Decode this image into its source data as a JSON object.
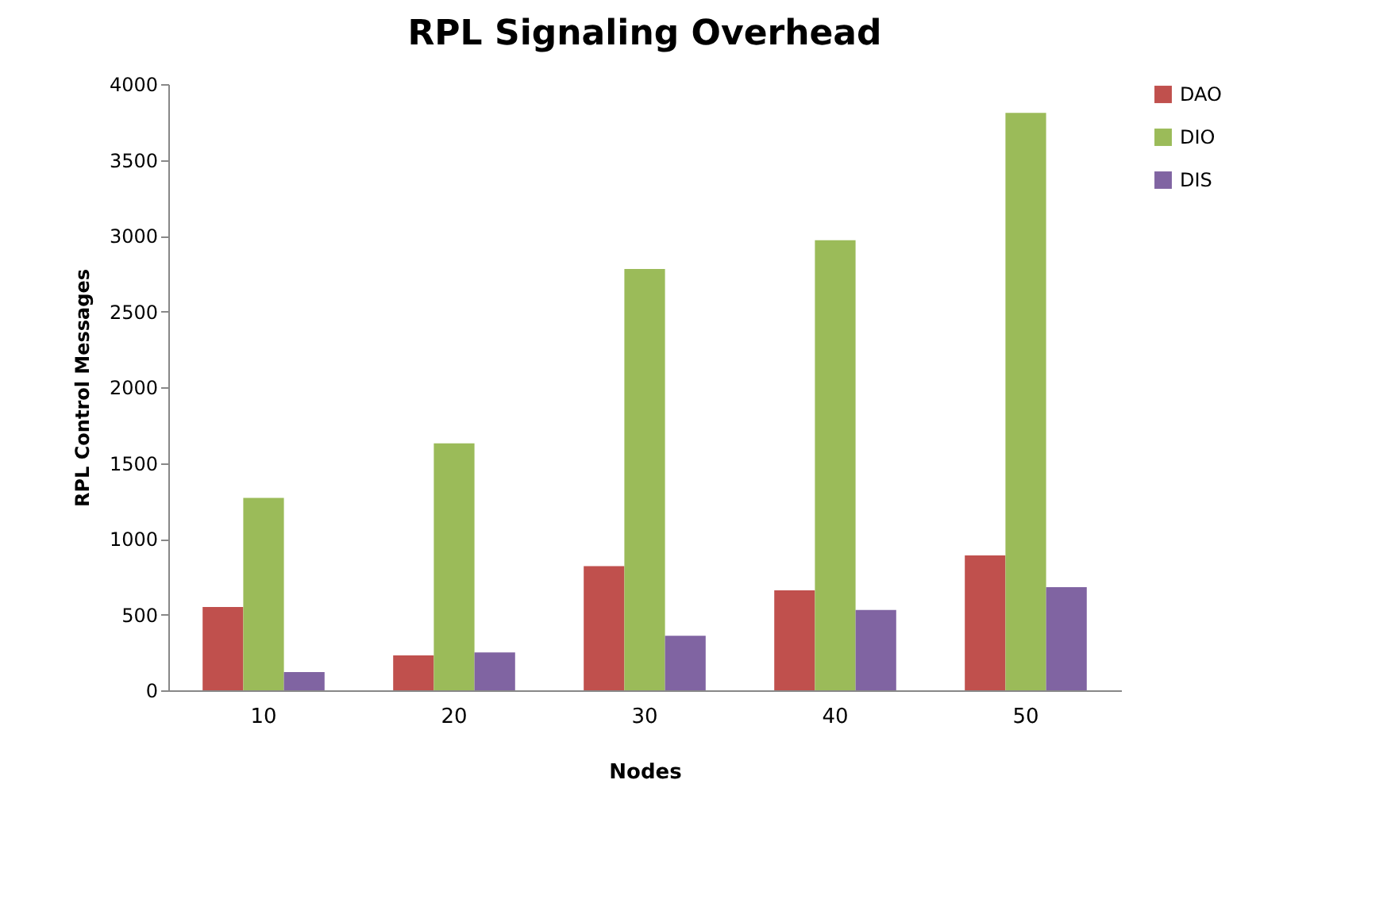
{
  "chart_data": {
    "type": "bar",
    "title": "RPL Signaling Overhead",
    "xlabel": "Nodes",
    "ylabel": "RPL Control Messages",
    "categories": [
      "10",
      "20",
      "30",
      "40",
      "50"
    ],
    "series": [
      {
        "name": "DAO",
        "color": "#c0504d",
        "values": [
          550,
          230,
          820,
          660,
          890
        ]
      },
      {
        "name": "DIO",
        "color": "#9bbb59",
        "values": [
          1270,
          1630,
          2780,
          2970,
          3810
        ]
      },
      {
        "name": "DIS",
        "color": "#8064a2",
        "values": [
          120,
          250,
          360,
          530,
          680
        ]
      }
    ],
    "ylim": [
      0,
      4000
    ],
    "yticks": [
      0,
      500,
      1000,
      1500,
      2000,
      2500,
      3000,
      3500,
      4000
    ],
    "grid": false,
    "legend": "right"
  }
}
